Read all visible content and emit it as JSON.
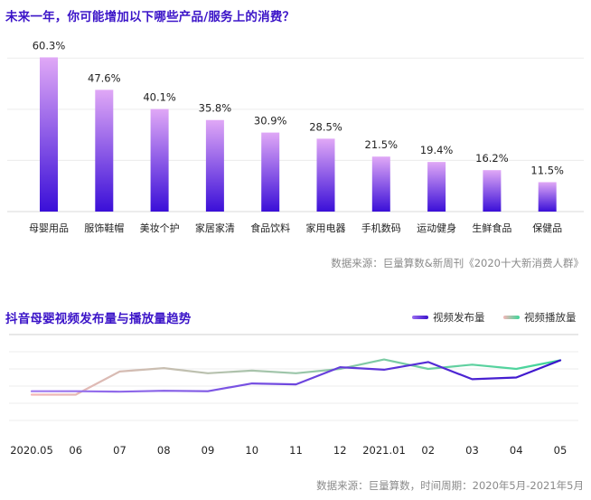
{
  "chart_data": [
    {
      "type": "bar",
      "title": "未来一年，你可能增加以下哪些产品/服务上的消费？",
      "categories": [
        "母婴用品",
        "服饰鞋帽",
        "美妆个护",
        "家居家清",
        "食品饮料",
        "家用电器",
        "手机数码",
        "运动健身",
        "生鲜食品",
        "保健品"
      ],
      "values": [
        60.3,
        47.6,
        40.1,
        35.8,
        30.9,
        28.5,
        21.5,
        19.4,
        16.2,
        11.5
      ],
      "value_labels": [
        "60.3%",
        "47.6%",
        "40.1%",
        "35.8%",
        "30.9%",
        "28.5%",
        "21.5%",
        "19.4%",
        "16.2%",
        "11.5%"
      ],
      "ylim": [
        0,
        70
      ],
      "grid": true,
      "colors": {
        "bar_top": "#e0a8f6",
        "bar_bottom": "#3a0fd8"
      },
      "source": "数据来源：巨量算数&新周刊《2020十大新消费人群》"
    },
    {
      "type": "line",
      "title": "抖音母婴视频发布量与播放量趋势",
      "x": [
        "2020.05",
        "06",
        "07",
        "08",
        "09",
        "10",
        "11",
        "12",
        "2021.01",
        "02",
        "03",
        "04",
        "05"
      ],
      "series": [
        {
          "name": "视频发布量",
          "values": [
            34,
            34,
            33.5,
            34.5,
            34,
            43,
            42,
            62,
            59,
            68,
            48,
            50,
            70
          ],
          "color_start": "#a07af0",
          "color_end": "#3a12cc"
        },
        {
          "name": "视频播放量",
          "values": [
            30,
            30,
            57,
            61,
            55,
            58,
            55,
            60,
            71,
            60,
            65,
            60,
            70
          ],
          "color_start": "#f5b6b8",
          "color_end": "#3fd69a"
        }
      ],
      "ylim": [
        0,
        100
      ],
      "grid": true,
      "legend": "top-right",
      "source": "数据来源：巨量算数，时间周期：2020年5月-2021年5月"
    }
  ]
}
